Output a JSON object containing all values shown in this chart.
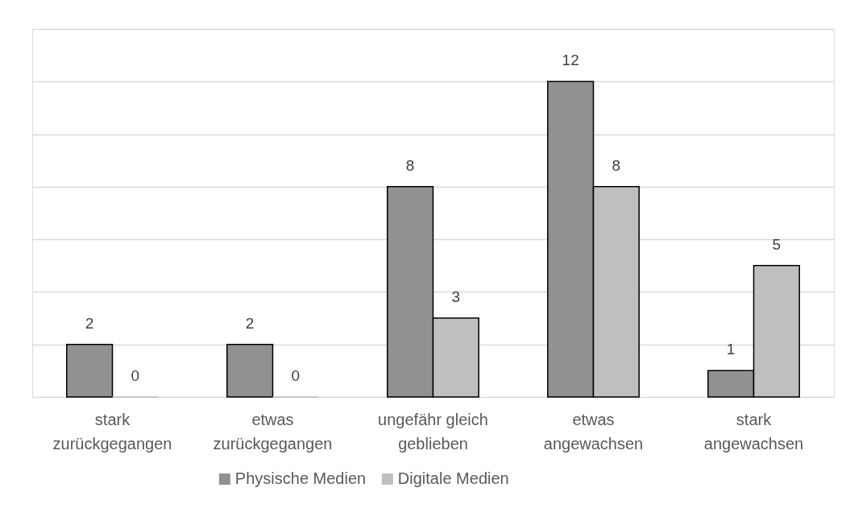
{
  "chart_data": {
    "type": "bar",
    "categories": [
      "stark zurückgegangen",
      "etwas zurückgegangen",
      "ungefähr gleich geblieben",
      "etwas angewachsen",
      "stark angewachsen"
    ],
    "series": [
      {
        "name": "Physische Medien",
        "color": "#919191",
        "values": [
          2,
          2,
          8,
          12,
          1
        ]
      },
      {
        "name": "Digitale Medien",
        "color": "#bfbfbf",
        "values": [
          0,
          0,
          3,
          8,
          5
        ]
      }
    ],
    "ylim": [
      0,
      14
    ],
    "yticks": [
      0,
      2,
      4,
      6,
      8,
      10,
      12,
      14
    ],
    "tick_labels": "x",
    "grid": "y",
    "data_labels": true,
    "legend": "bottom"
  }
}
